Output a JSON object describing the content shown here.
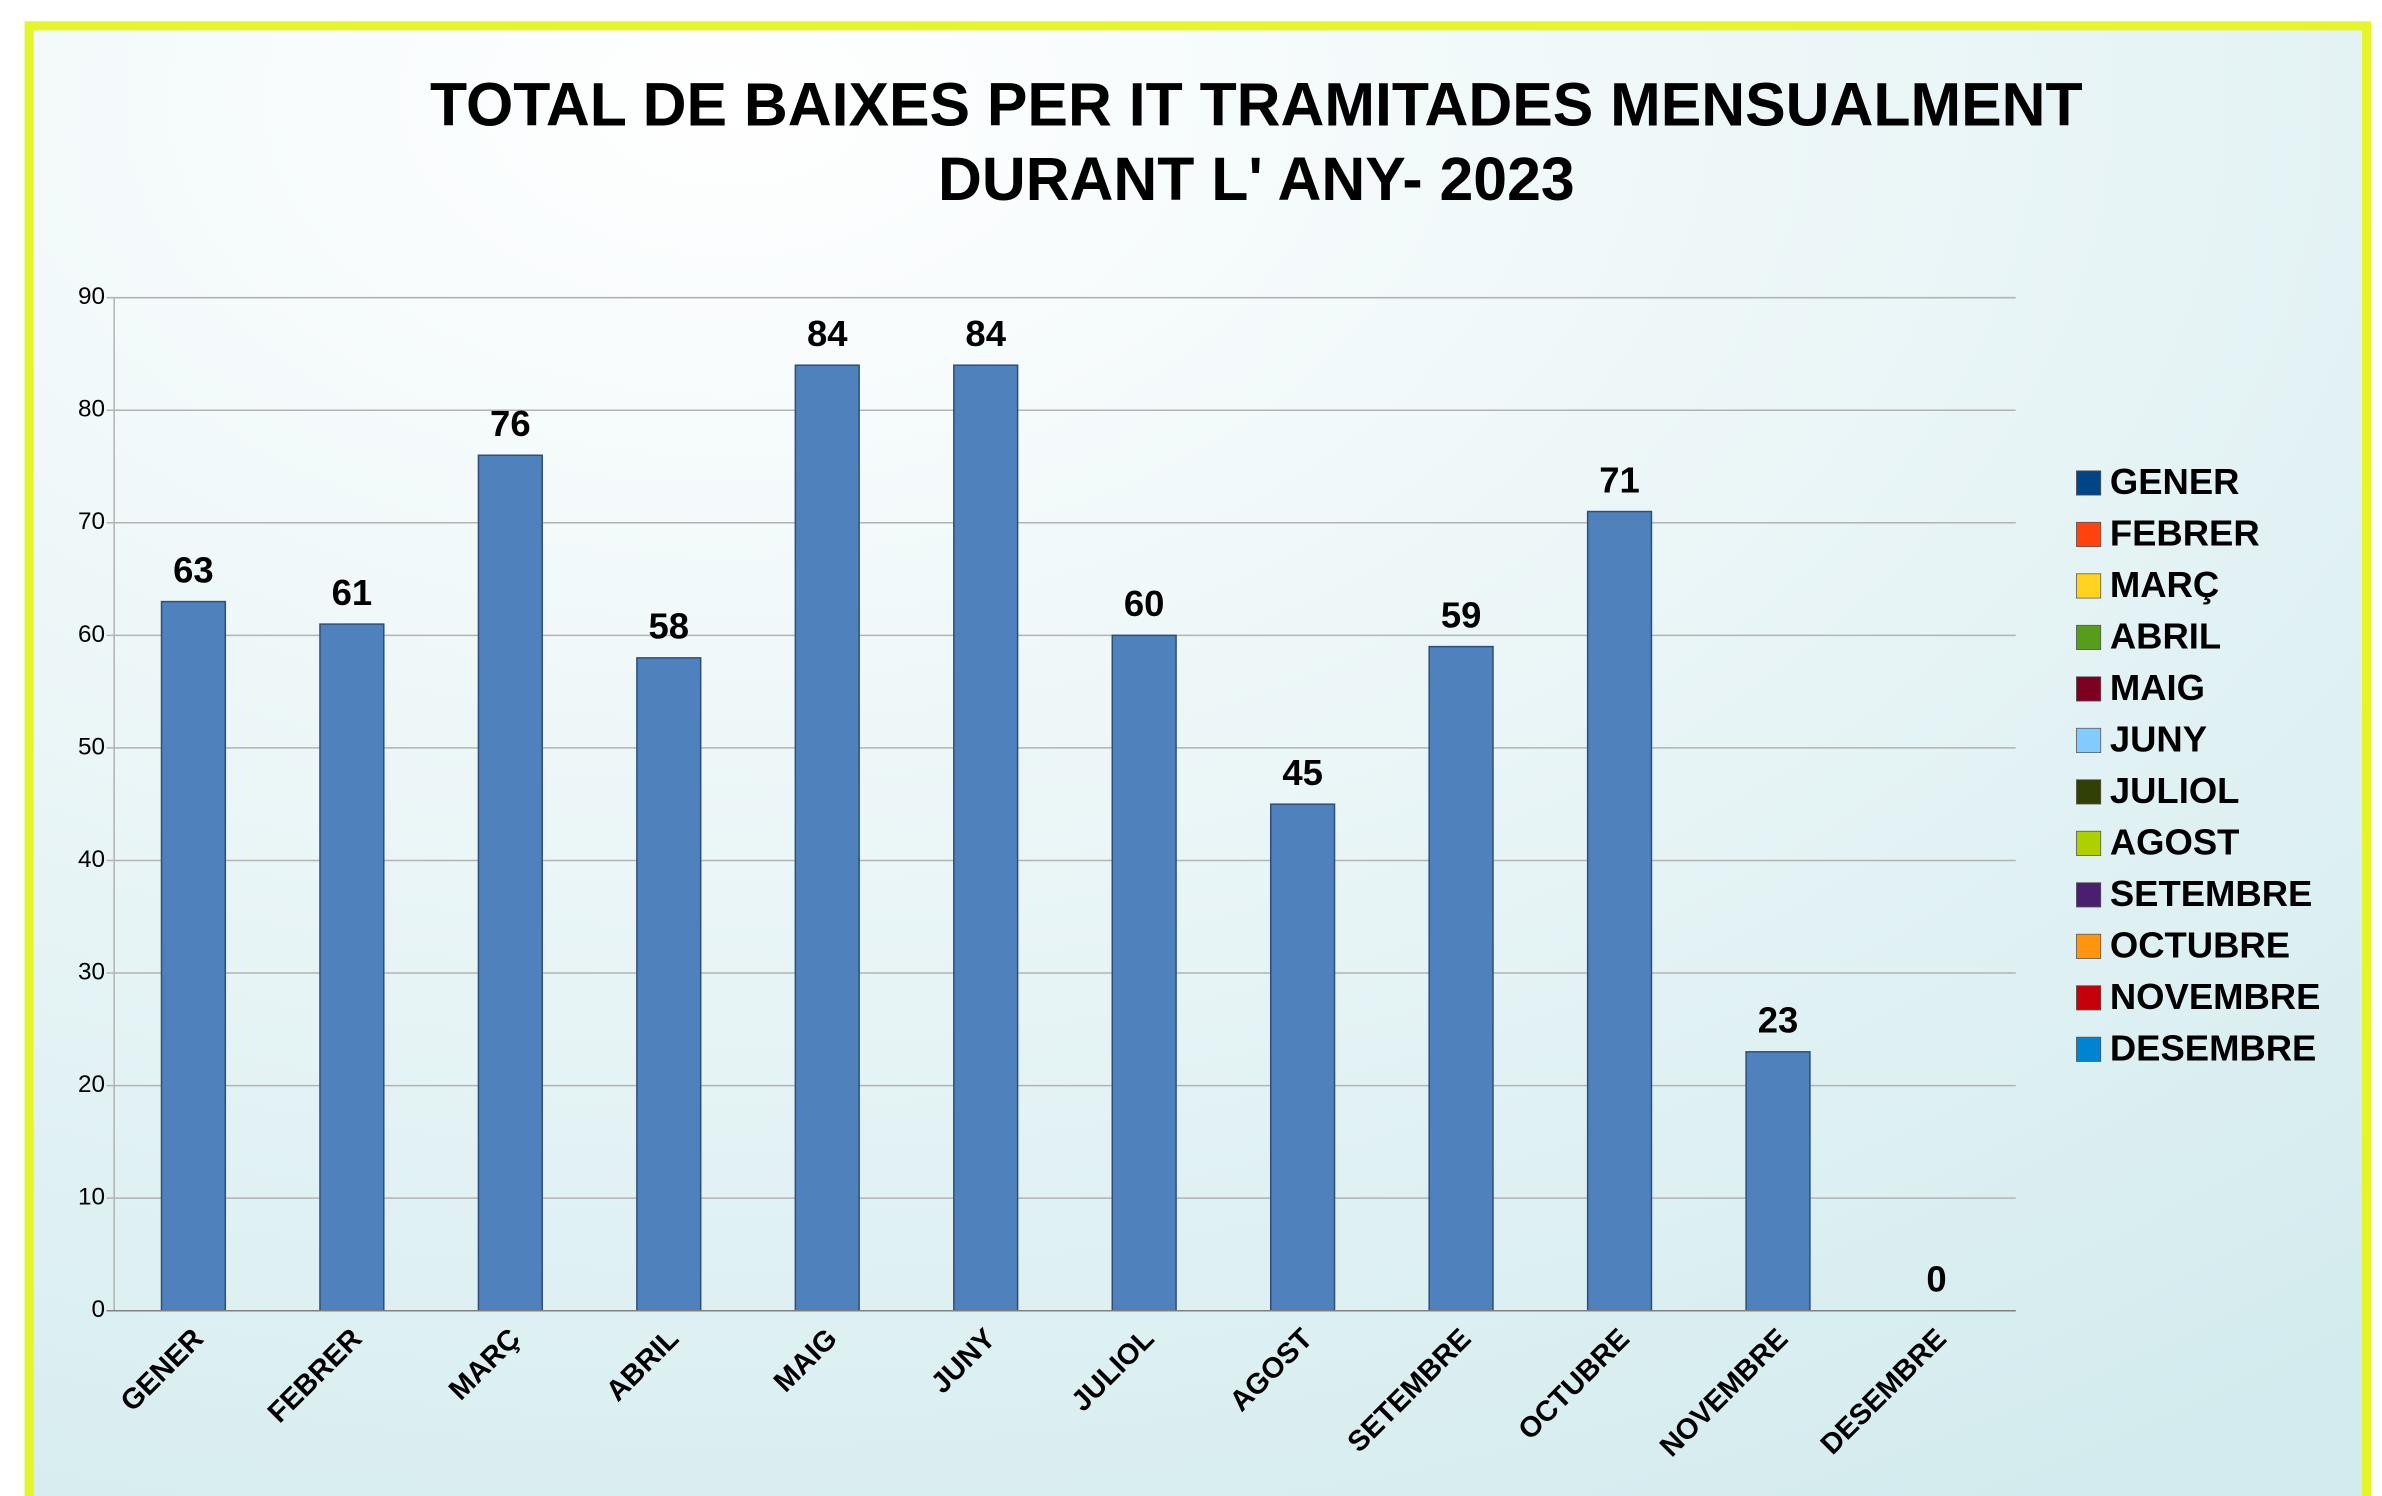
{
  "chart_data": {
    "type": "bar",
    "title": [
      "TOTAL DE BAIXES PER IT TRAMITADES  MENSUALMENT",
      "DURANT L' ANY- 2023"
    ],
    "categories": [
      "GENER",
      "FEBRER",
      "MARÇ",
      "ABRIL",
      "MAIG",
      "JUNY",
      "JULIOL",
      "AGOST",
      "SETEMBRE",
      "OCTUBRE",
      "NOVEMBRE",
      "DESEMBRE"
    ],
    "values": [
      63,
      61,
      76,
      58,
      84,
      84,
      60,
      45,
      59,
      71,
      23,
      0
    ],
    "color": "#4f81bd",
    "legend_colors": [
      "#004586",
      "#ff420e",
      "#ffd320",
      "#579d1c",
      "#7e0021",
      "#83caff",
      "#314004",
      "#aecf00",
      "#4b1f6f",
      "#ff950e",
      "#c5000b",
      "#0084d1"
    ],
    "legend": "right",
    "ylim": [
      0,
      90
    ],
    "yticks": [
      0,
      10,
      20,
      30,
      40,
      50,
      60,
      70,
      80,
      90
    ],
    "grid": true
  }
}
